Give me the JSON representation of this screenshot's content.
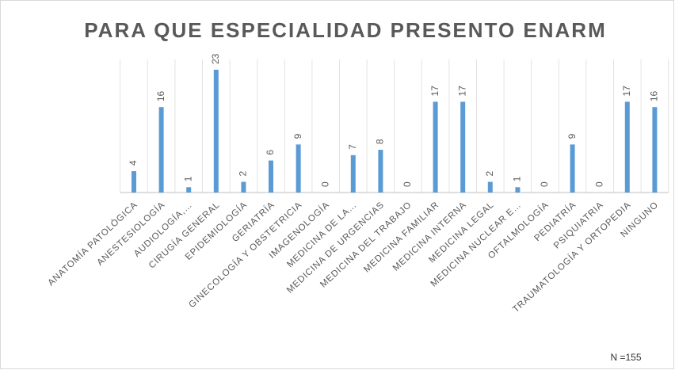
{
  "chart_data": {
    "type": "bar",
    "title": "PARA QUE ESPECIALIDAD PRESENTO ENARM",
    "categories": [
      "ANATOMÍA PATOLÓGICA",
      "ANESTESIOLOGÍA",
      "AUDIOLOGÍA,…",
      "CIRUGÍA GENERAL",
      "EPIDEMIOLOGÍA",
      "GERIATRÍA",
      "GINECOLOGÍA Y OBSTETRICIA",
      "IMAGENOLOGÍA",
      "MEDICINA DE LA…",
      "MEDICINA DE URGENCIAS",
      "MEDICINA DEL TRABAJO",
      "MEDICINA FAMILIAR",
      "MEDICINA INTERNA",
      "MEDICINA LEGAL",
      "MEDICINA NUCLEAR E…",
      "OFTALMOLOGÍA",
      "PEDIATRÍA",
      "PSIQUIATRIA",
      "TRAUMATOLOGÍA Y ORTOPEDIA",
      "NINGUNO"
    ],
    "values": [
      4,
      16,
      1,
      23,
      2,
      6,
      9,
      0,
      7,
      8,
      0,
      17,
      17,
      2,
      1,
      0,
      9,
      0,
      17,
      16
    ],
    "color": "#5b9bd5",
    "grid": true,
    "annotation": "N =155"
  }
}
